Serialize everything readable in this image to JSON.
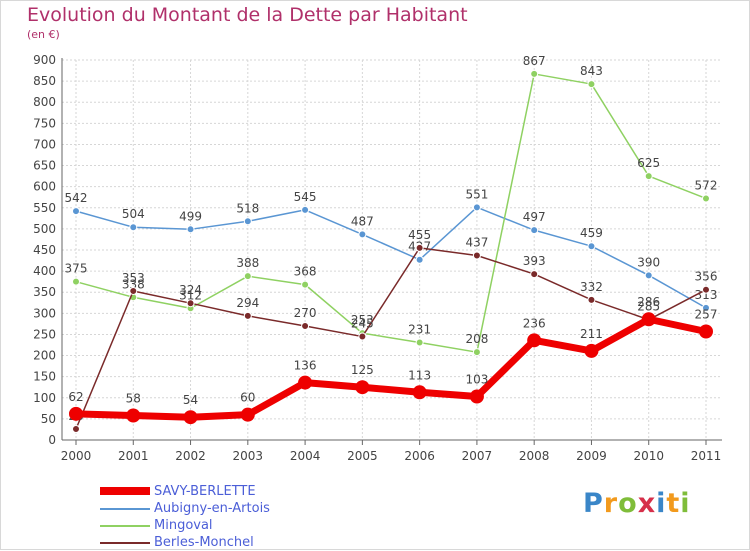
{
  "chart_data": {
    "type": "line",
    "title": "Evolution du Montant de la Dette par Habitant",
    "subtitle": "(en €)",
    "x": [
      "2000",
      "2001",
      "2002",
      "2003",
      "2004",
      "2005",
      "2006",
      "2007",
      "2008",
      "2009",
      "2010",
      "2011"
    ],
    "ylim": [
      0,
      900
    ],
    "yticks": [
      0,
      50,
      100,
      150,
      200,
      250,
      300,
      350,
      400,
      450,
      500,
      550,
      600,
      650,
      700,
      750,
      800,
      850,
      900
    ],
    "grid": true,
    "legend_placement": "bottom-left",
    "series": [
      {
        "name": "SAVY-BERLETTE",
        "color": "#ee0000",
        "values": [
          62,
          58,
          54,
          60,
          136,
          125,
          113,
          103,
          236,
          211,
          286,
          257
        ]
      },
      {
        "name": "Aubigny-en-Artois",
        "color": "#5a96d3",
        "values": [
          542,
          504,
          499,
          518,
          545,
          487,
          427,
          551,
          497,
          459,
          390,
          313
        ]
      },
      {
        "name": "Mingoval",
        "color": "#8fd162",
        "values": [
          375,
          338,
          312,
          388,
          368,
          253,
          231,
          208,
          867,
          843,
          625,
          572
        ]
      },
      {
        "name": "Berles-Monchel",
        "color": "#7a2a2a",
        "values": [
          26,
          353,
          324,
          294,
          270,
          245,
          455,
          437,
          393,
          332,
          285,
          356
        ]
      }
    ]
  },
  "legend": [
    {
      "label": "SAVY-BERLETTE",
      "color": "#ee0000"
    },
    {
      "label": "Aubigny-en-Artois",
      "color": "#5a96d3"
    },
    {
      "label": "Mingoval",
      "color": "#8fd162"
    },
    {
      "label": "Berles-Monchel",
      "color": "#7a2a2a"
    }
  ],
  "brand": {
    "letters": [
      "P",
      "r",
      "o",
      "x",
      "i",
      "t",
      "i"
    ]
  }
}
